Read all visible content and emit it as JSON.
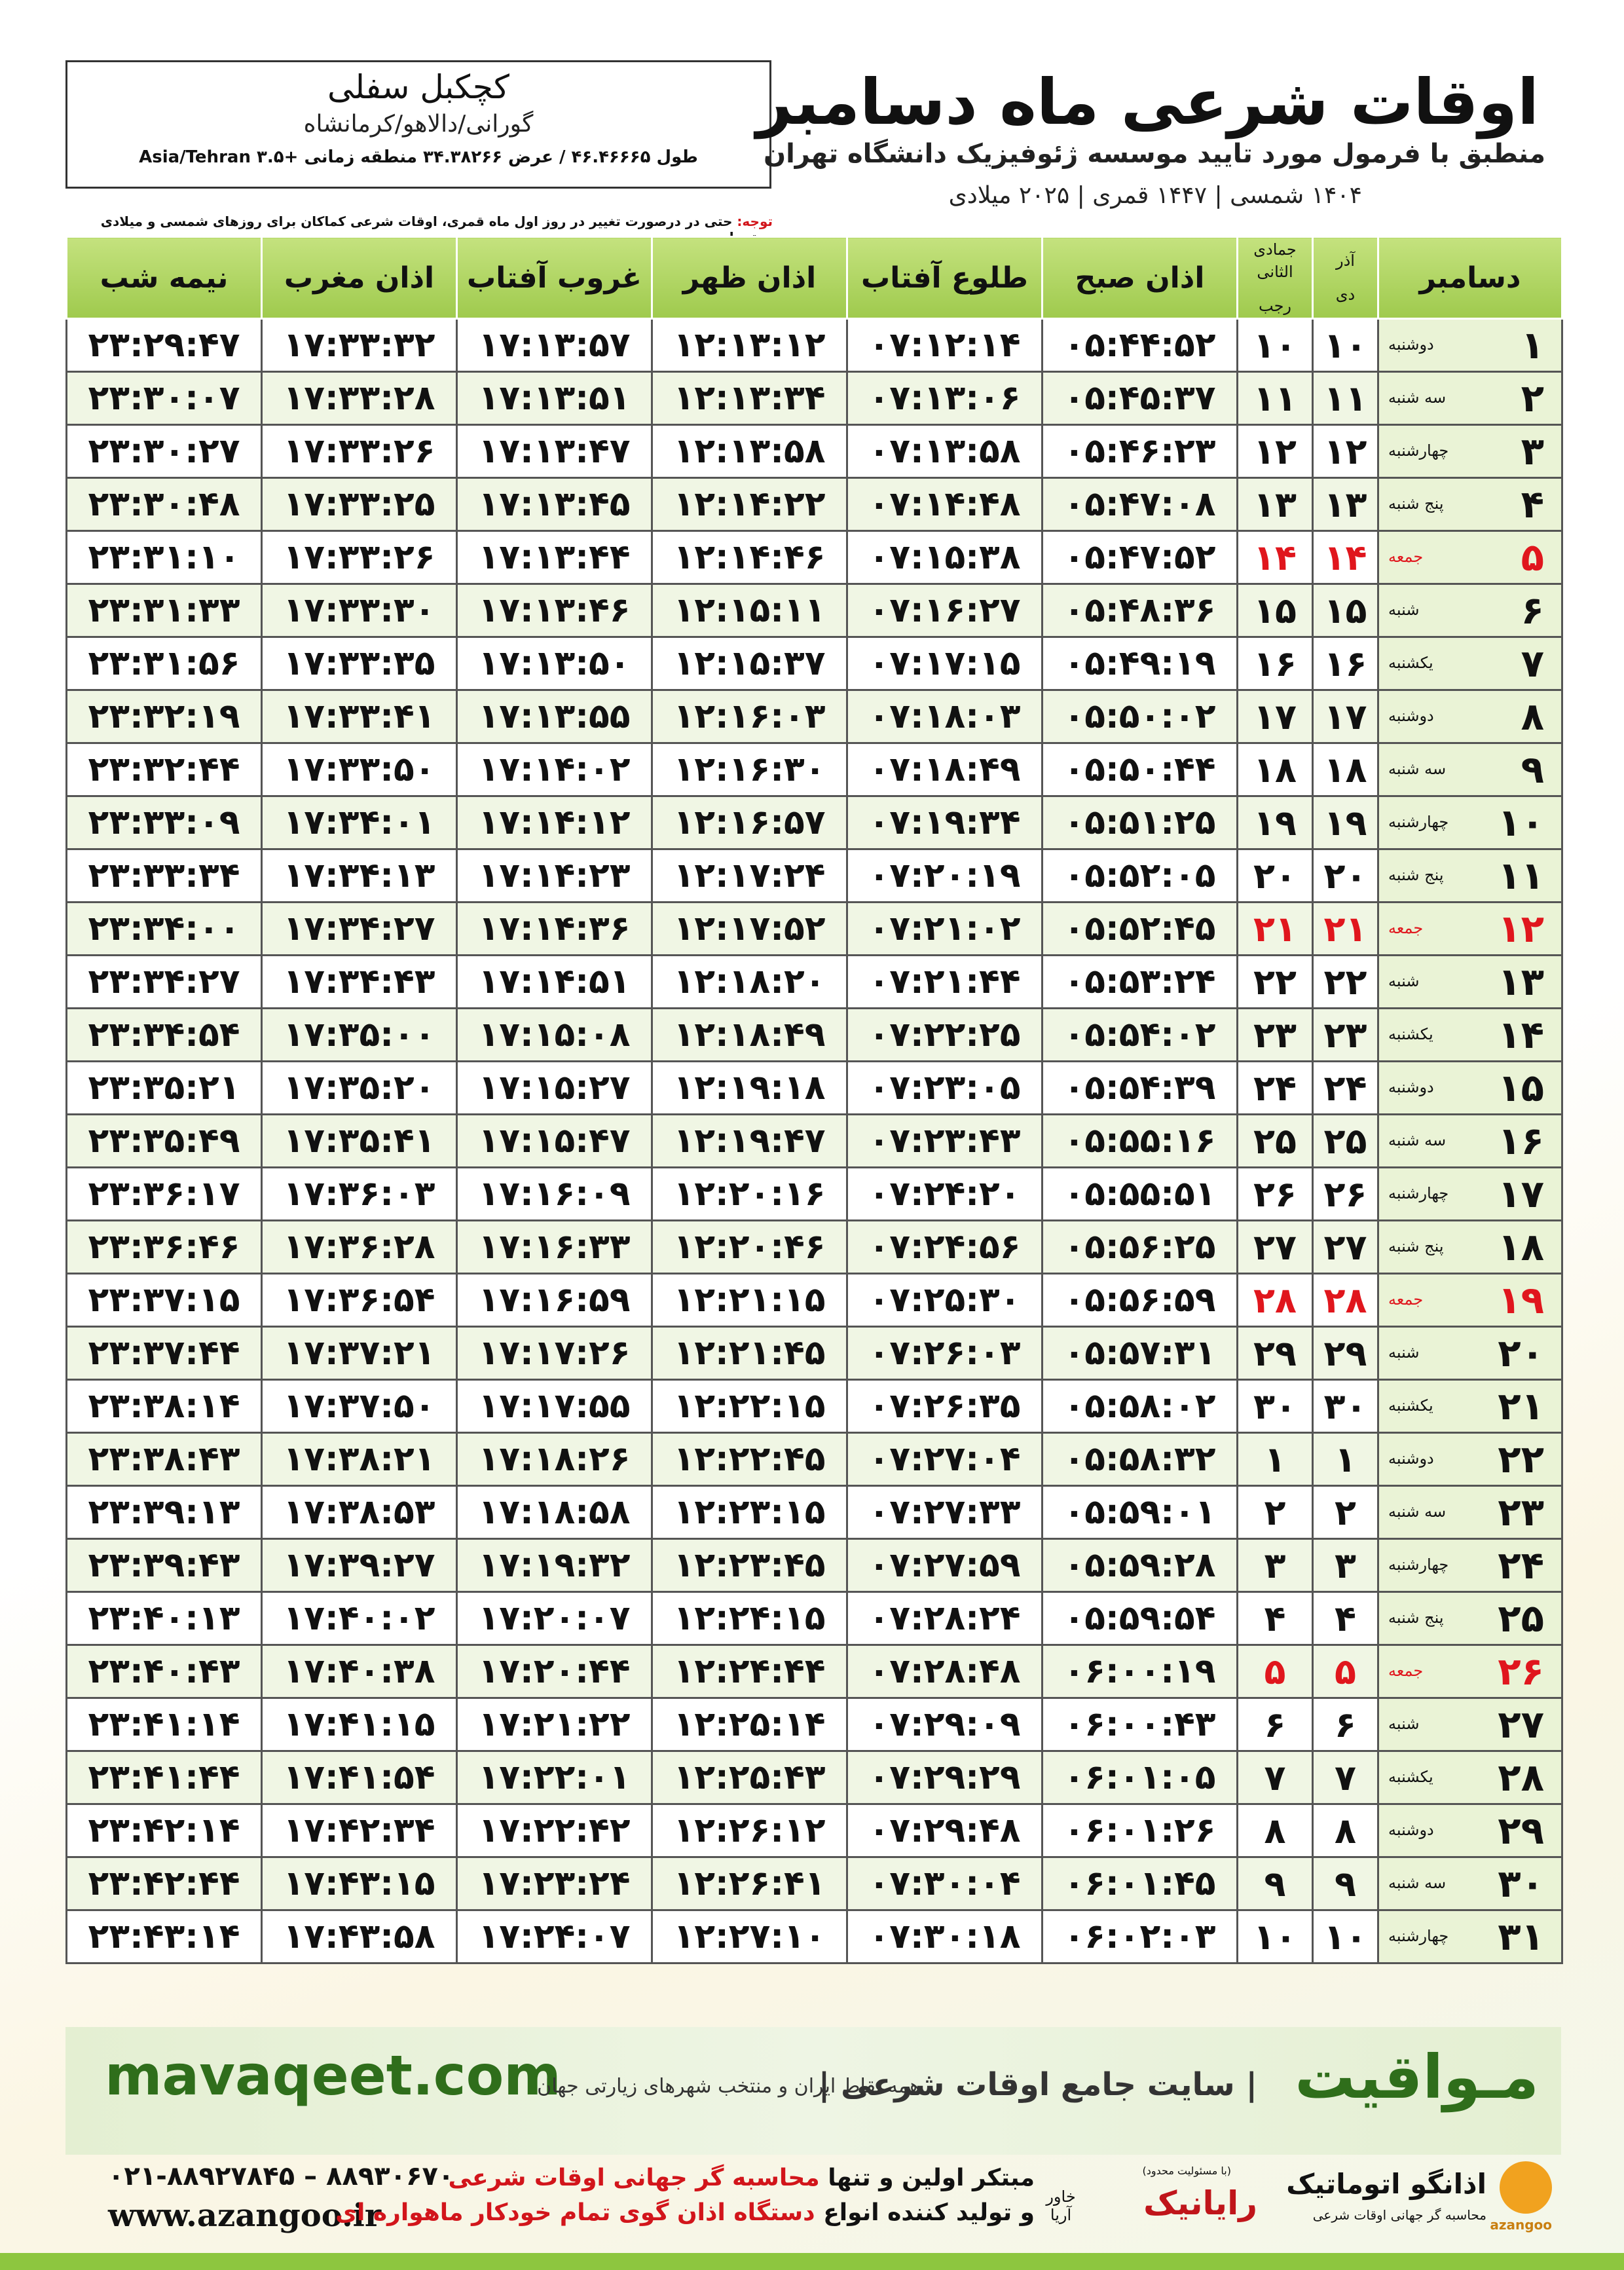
{
  "header": {
    "title": "اوقات شرعی ماه دسامبر",
    "subtitle": "منطبق با فرمول مورد تایید موسسه ژئوفیزیک دانشگاه تهران",
    "years": "۱۴۰۴ شمسی | ۱۴۴۷ قمری | ۲۰۲۵ میلادی"
  },
  "location": {
    "name": "کچکبل سفلی",
    "region": "گورانی/دالاهو/کرمانشاه",
    "coords": "طول ۴۶.۴۶۶۶۵ / عرض ۳۴.۳۸۲۶۶ منطقه زمانی +۳.۵ Asia/Tehran"
  },
  "note": {
    "label": "توجه:",
    "text": "حتی در درصورت تغییر در روز اول ماه قمری، اوقات شرعی کماکان برای روزهای شمسی و میلادی معتبر است."
  },
  "table": {
    "columns": [
      {
        "label": "دسامبر"
      },
      {
        "label": "آذر",
        "sub": "دی"
      },
      {
        "label": "جمادی الثانی",
        "sub": "رجب"
      },
      {
        "label": "اذان صبح"
      },
      {
        "label": "طلوع آفتاب"
      },
      {
        "label": "اذان ظهر"
      },
      {
        "label": "غروب آفتاب"
      },
      {
        "label": "اذان مغرب"
      },
      {
        "label": "نیمه شب"
      }
    ],
    "rows": [
      {
        "cells": [
          "۱",
          "دوشنبه",
          "۱۰",
          "۱۰",
          "۰۵:۴۴:۵۲",
          "۰۷:۱۲:۱۴",
          "۱۲:۱۳:۱۲",
          "۱۷:۱۳:۵۷",
          "۱۷:۳۳:۳۲",
          "۲۳:۲۹:۴۷"
        ]
      },
      {
        "cells": [
          "۲",
          "سه شنبه",
          "۱۱",
          "۱۱",
          "۰۵:۴۵:۳۷",
          "۰۷:۱۳:۰۶",
          "۱۲:۱۳:۳۴",
          "۱۷:۱۳:۵۱",
          "۱۷:۳۳:۲۸",
          "۲۳:۳۰:۰۷"
        ]
      },
      {
        "cells": [
          "۳",
          "چهارشنبه",
          "۱۲",
          "۱۲",
          "۰۵:۴۶:۲۳",
          "۰۷:۱۳:۵۸",
          "۱۲:۱۳:۵۸",
          "۱۷:۱۳:۴۷",
          "۱۷:۳۳:۲۶",
          "۲۳:۳۰:۲۷"
        ]
      },
      {
        "cells": [
          "۴",
          "پنج شنبه",
          "۱۳",
          "۱۳",
          "۰۵:۴۷:۰۸",
          "۰۷:۱۴:۴۸",
          "۱۲:۱۴:۲۲",
          "۱۷:۱۳:۴۵",
          "۱۷:۳۳:۲۵",
          "۲۳:۳۰:۴۸"
        ]
      },
      {
        "cells": [
          "۵",
          "جمعه",
          "۱۴",
          "۱۴",
          "۰۵:۴۷:۵۲",
          "۰۷:۱۵:۳۸",
          "۱۲:۱۴:۴۶",
          "۱۷:۱۳:۴۴",
          "۱۷:۳۳:۲۶",
          "۲۳:۳۱:۱۰"
        ],
        "color": "#e0161d"
      },
      {
        "cells": [
          "۶",
          "شنبه",
          "۱۵",
          "۱۵",
          "۰۵:۴۸:۳۶",
          "۰۷:۱۶:۲۷",
          "۱۲:۱۵:۱۱",
          "۱۷:۱۳:۴۶",
          "۱۷:۳۳:۳۰",
          "۲۳:۳۱:۳۳"
        ]
      },
      {
        "cells": [
          "۷",
          "یکشنبه",
          "۱۶",
          "۱۶",
          "۰۵:۴۹:۱۹",
          "۰۷:۱۷:۱۵",
          "۱۲:۱۵:۳۷",
          "۱۷:۱۳:۵۰",
          "۱۷:۳۳:۳۵",
          "۲۳:۳۱:۵۶"
        ]
      },
      {
        "cells": [
          "۸",
          "دوشنبه",
          "۱۷",
          "۱۷",
          "۰۵:۵۰:۰۲",
          "۰۷:۱۸:۰۳",
          "۱۲:۱۶:۰۳",
          "۱۷:۱۳:۵۵",
          "۱۷:۳۳:۴۱",
          "۲۳:۳۲:۱۹"
        ]
      },
      {
        "cells": [
          "۹",
          "سه شنبه",
          "۱۸",
          "۱۸",
          "۰۵:۵۰:۴۴",
          "۰۷:۱۸:۴۹",
          "۱۲:۱۶:۳۰",
          "۱۷:۱۴:۰۲",
          "۱۷:۳۳:۵۰",
          "۲۳:۳۲:۴۴"
        ]
      },
      {
        "cells": [
          "۱۰",
          "چهارشنبه",
          "۱۹",
          "۱۹",
          "۰۵:۵۱:۲۵",
          "۰۷:۱۹:۳۴",
          "۱۲:۱۶:۵۷",
          "۱۷:۱۴:۱۲",
          "۱۷:۳۴:۰۱",
          "۲۳:۳۳:۰۹"
        ]
      },
      {
        "cells": [
          "۱۱",
          "پنج شنبه",
          "۲۰",
          "۲۰",
          "۰۵:۵۲:۰۵",
          "۰۷:۲۰:۱۹",
          "۱۲:۱۷:۲۴",
          "۱۷:۱۴:۲۳",
          "۱۷:۳۴:۱۳",
          "۲۳:۳۳:۳۴"
        ]
      },
      {
        "cells": [
          "۱۲",
          "جمعه",
          "۲۱",
          "۲۱",
          "۰۵:۵۲:۴۵",
          "۰۷:۲۱:۰۲",
          "۱۲:۱۷:۵۲",
          "۱۷:۱۴:۳۶",
          "۱۷:۳۴:۲۷",
          "۲۳:۳۴:۰۰"
        ],
        "color": "#e0161d"
      },
      {
        "cells": [
          "۱۳",
          "شنبه",
          "۲۲",
          "۲۲",
          "۰۵:۵۳:۲۴",
          "۰۷:۲۱:۴۴",
          "۱۲:۱۸:۲۰",
          "۱۷:۱۴:۵۱",
          "۱۷:۳۴:۴۳",
          "۲۳:۳۴:۲۷"
        ]
      },
      {
        "cells": [
          "۱۴",
          "یکشنبه",
          "۲۳",
          "۲۳",
          "۰۵:۵۴:۰۲",
          "۰۷:۲۲:۲۵",
          "۱۲:۱۸:۴۹",
          "۱۷:۱۵:۰۸",
          "۱۷:۳۵:۰۰",
          "۲۳:۳۴:۵۴"
        ]
      },
      {
        "cells": [
          "۱۵",
          "دوشنبه",
          "۲۴",
          "۲۴",
          "۰۵:۵۴:۳۹",
          "۰۷:۲۳:۰۵",
          "۱۲:۱۹:۱۸",
          "۱۷:۱۵:۲۷",
          "۱۷:۳۵:۲۰",
          "۲۳:۳۵:۲۱"
        ]
      },
      {
        "cells": [
          "۱۶",
          "سه شنبه",
          "۲۵",
          "۲۵",
          "۰۵:۵۵:۱۶",
          "۰۷:۲۳:۴۳",
          "۱۲:۱۹:۴۷",
          "۱۷:۱۵:۴۷",
          "۱۷:۳۵:۴۱",
          "۲۳:۳۵:۴۹"
        ]
      },
      {
        "cells": [
          "۱۷",
          "چهارشنبه",
          "۲۶",
          "۲۶",
          "۰۵:۵۵:۵۱",
          "۰۷:۲۴:۲۰",
          "۱۲:۲۰:۱۶",
          "۱۷:۱۶:۰۹",
          "۱۷:۳۶:۰۳",
          "۲۳:۳۶:۱۷"
        ]
      },
      {
        "cells": [
          "۱۸",
          "پنج شنبه",
          "۲۷",
          "۲۷",
          "۰۵:۵۶:۲۵",
          "۰۷:۲۴:۵۶",
          "۱۲:۲۰:۴۶",
          "۱۷:۱۶:۳۳",
          "۱۷:۳۶:۲۸",
          "۲۳:۳۶:۴۶"
        ]
      },
      {
        "cells": [
          "۱۹",
          "جمعه",
          "۲۸",
          "۲۸",
          "۰۵:۵۶:۵۹",
          "۰۷:۲۵:۳۰",
          "۱۲:۲۱:۱۵",
          "۱۷:۱۶:۵۹",
          "۱۷:۳۶:۵۴",
          "۲۳:۳۷:۱۵"
        ],
        "color": "#e0161d"
      },
      {
        "cells": [
          "۲۰",
          "شنبه",
          "۲۹",
          "۲۹",
          "۰۵:۵۷:۳۱",
          "۰۷:۲۶:۰۳",
          "۱۲:۲۱:۴۵",
          "۱۷:۱۷:۲۶",
          "۱۷:۳۷:۲۱",
          "۲۳:۳۷:۴۴"
        ]
      },
      {
        "cells": [
          "۲۱",
          "یکشنبه",
          "۳۰",
          "۳۰",
          "۰۵:۵۸:۰۲",
          "۰۷:۲۶:۳۵",
          "۱۲:۲۲:۱۵",
          "۱۷:۱۷:۵۵",
          "۱۷:۳۷:۵۰",
          "۲۳:۳۸:۱۴"
        ]
      },
      {
        "cells": [
          "۲۲",
          "دوشنبه",
          "۱",
          "۱",
          "۰۵:۵۸:۳۲",
          "۰۷:۲۷:۰۴",
          "۱۲:۲۲:۴۵",
          "۱۷:۱۸:۲۶",
          "۱۷:۳۸:۲۱",
          "۲۳:۳۸:۴۳"
        ]
      },
      {
        "cells": [
          "۲۳",
          "سه شنبه",
          "۲",
          "۲",
          "۰۵:۵۹:۰۱",
          "۰۷:۲۷:۳۳",
          "۱۲:۲۳:۱۵",
          "۱۷:۱۸:۵۸",
          "۱۷:۳۸:۵۳",
          "۲۳:۳۹:۱۳"
        ]
      },
      {
        "cells": [
          "۲۴",
          "چهارشنبه",
          "۳",
          "۳",
          "۰۵:۵۹:۲۸",
          "۰۷:۲۷:۵۹",
          "۱۲:۲۳:۴۵",
          "۱۷:۱۹:۳۲",
          "۱۷:۳۹:۲۷",
          "۲۳:۳۹:۴۳"
        ]
      },
      {
        "cells": [
          "۲۵",
          "پنج شنبه",
          "۴",
          "۴",
          "۰۵:۵۹:۵۴",
          "۰۷:۲۸:۲۴",
          "۱۲:۲۴:۱۵",
          "۱۷:۲۰:۰۷",
          "۱۷:۴۰:۰۲",
          "۲۳:۴۰:۱۳"
        ]
      },
      {
        "cells": [
          "۲۶",
          "جمعه",
          "۵",
          "۵",
          "۰۶:۰۰:۱۹",
          "۰۷:۲۸:۴۸",
          "۱۲:۲۴:۴۴",
          "۱۷:۲۰:۴۴",
          "۱۷:۴۰:۳۸",
          "۲۳:۴۰:۴۳"
        ],
        "color": "#e0161d"
      },
      {
        "cells": [
          "۲۷",
          "شنبه",
          "۶",
          "۶",
          "۰۶:۰۰:۴۳",
          "۰۷:۲۹:۰۹",
          "۱۲:۲۵:۱۴",
          "۱۷:۲۱:۲۲",
          "۱۷:۴۱:۱۵",
          "۲۳:۴۱:۱۴"
        ]
      },
      {
        "cells": [
          "۲۸",
          "یکشنبه",
          "۷",
          "۷",
          "۰۶:۰۱:۰۵",
          "۰۷:۲۹:۲۹",
          "۱۲:۲۵:۴۳",
          "۱۷:۲۲:۰۱",
          "۱۷:۴۱:۵۴",
          "۲۳:۴۱:۴۴"
        ]
      },
      {
        "cells": [
          "۲۹",
          "دوشنبه",
          "۸",
          "۸",
          "۰۶:۰۱:۲۶",
          "۰۷:۲۹:۴۸",
          "۱۲:۲۶:۱۲",
          "۱۷:۲۲:۴۲",
          "۱۷:۴۲:۳۴",
          "۲۳:۴۲:۱۴"
        ]
      },
      {
        "cells": [
          "۳۰",
          "سه شنبه",
          "۹",
          "۹",
          "۰۶:۰۱:۴۵",
          "۰۷:۳۰:۰۴",
          "۱۲:۲۶:۴۱",
          "۱۷:۲۳:۲۴",
          "۱۷:۴۳:۱۵",
          "۲۳:۴۲:۴۴"
        ]
      },
      {
        "cells": [
          "۳۱",
          "چهارشنبه",
          "۱۰",
          "۱۰",
          "۰۶:۰۲:۰۳",
          "۰۷:۳۰:۱۸",
          "۱۲:۲۷:۱۰",
          "۱۷:۲۴:۰۷",
          "۱۷:۴۳:۵۸",
          "۲۳:۴۳:۱۴"
        ]
      }
    ]
  },
  "footer": {
    "site": "mavaqeet.com",
    "brand": "مـواقیت",
    "tagline": "| سایت جامع اوقات شرعی |",
    "scope": "همه نقاط ایران و منتخب شهرهای زیارتی جهان"
  },
  "contact": {
    "phone": "۰۲۱-۸۸۹۲۷۸۴۵ – ۸۸۹۳۰۶۷۰",
    "web": "www.azangoo.ir",
    "line1": {
      "text": "مبتکر اولین و تنها",
      "highlight": "محاسبه گر جهانی اوقات شرعی"
    },
    "line2": {
      "text": "و تولید کننده انواع",
      "highlight": "دستگاه اذان گوی تمام خودکار ماهواره ای"
    }
  },
  "logos": {
    "rayanik": "رایانیک",
    "khavar": "خاور آریا",
    "llc": "(با مسئولیت محدود)",
    "azangoo": "اذانگو اتوماتیک",
    "azangoo_sub": "محاسبه گر جهانی اوقات شرعی",
    "azangoo_latin": "azangoo"
  }
}
